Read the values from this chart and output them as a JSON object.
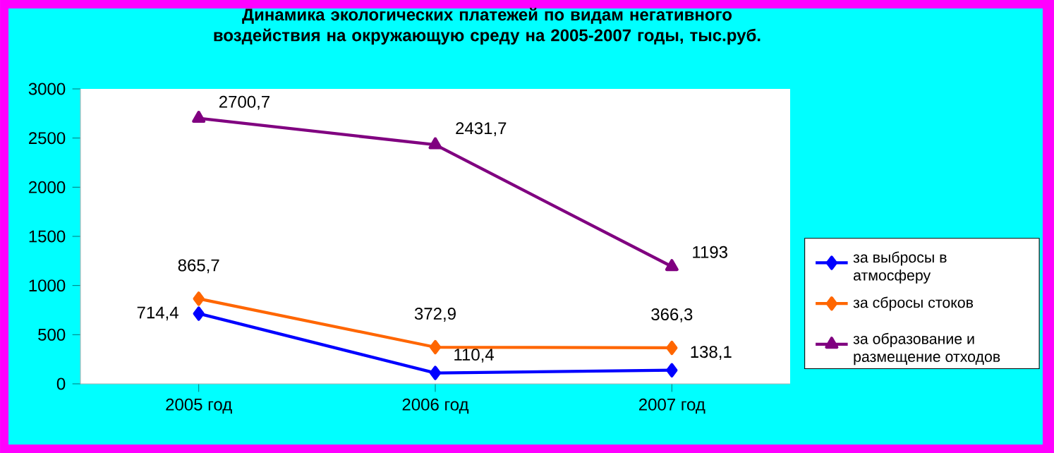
{
  "chart_data": {
    "type": "line",
    "title": "Динамика экологических платежей по видам  негативного воздействия на окружающую среду на 2005-2007 годы,     тыс.руб.",
    "categories": [
      "2005 год",
      "2006 год",
      "2007 год"
    ],
    "series": [
      {
        "name": "за выбросы в атмосферу",
        "color": "#0000ff",
        "marker": "diamond",
        "values": [
          714.4,
          110.4,
          138.1
        ],
        "value_labels": [
          "714,4",
          "110,4",
          "138,1"
        ]
      },
      {
        "name": "за сбросы  стоков",
        "color": "#ff6600",
        "marker": "diamond",
        "values": [
          865.7,
          372.9,
          366.3
        ],
        "value_labels": [
          "865,7",
          "372,9",
          "366,3"
        ]
      },
      {
        "name": "за образование и размещение отходов",
        "color": "#800080",
        "marker": "triangle",
        "values": [
          2700.7,
          2431.7,
          1193
        ],
        "value_labels": [
          "2700,7",
          "2431,7",
          "1193"
        ]
      }
    ],
    "ylim": [
      0,
      3000
    ],
    "yticks": [
      0,
      500,
      1000,
      1500,
      2000,
      2500,
      3000
    ],
    "grid": false,
    "legend": "right",
    "line_style": "solid"
  }
}
